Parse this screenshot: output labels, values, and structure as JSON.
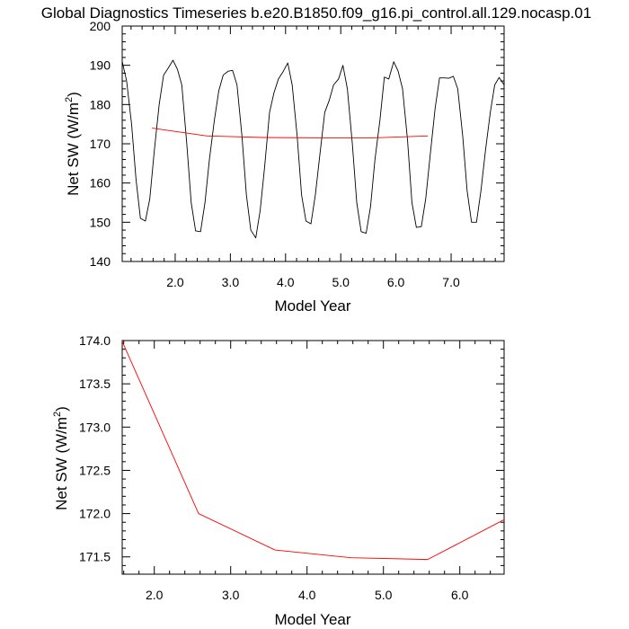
{
  "title": "Global Diagnostics Timeseries b.e20.B1850.f09_g16.pi_control.all.129.nocasp.01",
  "colors": {
    "monthly": "#000000",
    "annual": "#ff0000",
    "frame": "#000000"
  },
  "chart_data": [
    {
      "type": "line",
      "xlabel": "Model Year",
      "ylabel_main": "Net SW (W/m",
      "ylabel_sup": "2",
      "ylabel_close": ")",
      "xlim": [
        1.04,
        7.96
      ],
      "ylim": [
        140,
        200
      ],
      "x_ticks": [
        2,
        3,
        4,
        5,
        6,
        7
      ],
      "x_tick_labels": [
        "2.0",
        "3.0",
        "4.0",
        "5.0",
        "6.0",
        "7.0"
      ],
      "y_ticks": [
        140,
        150,
        160,
        170,
        180,
        190,
        200
      ],
      "y_tick_labels": [
        "140",
        "150",
        "160",
        "170",
        "180",
        "190",
        "200"
      ],
      "series": [
        {
          "color": "#000000",
          "x": [
            1.04,
            1.12,
            1.21,
            1.29,
            1.37,
            1.46,
            1.54,
            1.62,
            1.71,
            1.79,
            1.87,
            1.96,
            2.04,
            2.12,
            2.21,
            2.29,
            2.37,
            2.46,
            2.54,
            2.62,
            2.71,
            2.79,
            2.87,
            2.96,
            3.04,
            3.12,
            3.21,
            3.29,
            3.37,
            3.46,
            3.54,
            3.62,
            3.71,
            3.79,
            3.87,
            3.96,
            4.04,
            4.12,
            4.21,
            4.29,
            4.37,
            4.46,
            4.54,
            4.62,
            4.71,
            4.79,
            4.87,
            4.96,
            5.04,
            5.12,
            5.21,
            5.29,
            5.37,
            5.46,
            5.54,
            5.62,
            5.71,
            5.79,
            5.87,
            5.96,
            6.04,
            6.12,
            6.21,
            6.29,
            6.37,
            6.46,
            6.54,
            6.62,
            6.71,
            6.79,
            6.87,
            6.96,
            7.04,
            7.12,
            7.21,
            7.29,
            7.37,
            7.46,
            7.54,
            7.62,
            7.71,
            7.79,
            7.87,
            7.96
          ],
          "values": [
            191.0,
            186.0,
            175.0,
            161.0,
            151.0,
            150.3,
            156.0,
            168.0,
            180.0,
            187.5,
            189.2,
            191.3,
            189.0,
            185.0,
            170.0,
            155.0,
            147.8,
            147.6,
            155.0,
            166.0,
            176.0,
            183.5,
            187.5,
            188.5,
            188.7,
            185.0,
            172.0,
            157.0,
            148.0,
            146.0,
            153.0,
            164.0,
            178.0,
            183.0,
            186.5,
            188.5,
            190.6,
            185.0,
            172.0,
            157.0,
            150.3,
            149.6,
            157.0,
            167.0,
            178.0,
            181.0,
            185.0,
            186.5,
            190.0,
            184.0,
            170.0,
            155.0,
            147.6,
            147.2,
            154.0,
            166.0,
            176.0,
            187.0,
            186.5,
            190.9,
            188.5,
            184.0,
            171.0,
            155.0,
            148.7,
            148.9,
            156.0,
            167.0,
            179.0,
            186.8,
            186.8,
            186.7,
            187.2,
            184.0,
            172.0,
            158.0,
            150.0,
            150.0,
            158.0,
            168.0,
            178.0,
            185.0,
            186.9,
            185.0
          ]
        },
        {
          "color": "#ff0000",
          "x": [
            1.58,
            2.58,
            3.58,
            4.58,
            5.58,
            6.58
          ],
          "values": [
            174.0,
            172.0,
            171.6,
            171.5,
            171.5,
            172.0
          ]
        }
      ]
    },
    {
      "type": "line",
      "xlabel": "Model Year",
      "ylabel_main": "Net SW (W/m",
      "ylabel_sup": "2",
      "ylabel_close": ")",
      "xlim": [
        1.58,
        6.58
      ],
      "ylim": [
        171.3,
        174.0
      ],
      "x_ticks": [
        2,
        3,
        4,
        5,
        6
      ],
      "x_tick_labels": [
        "2.0",
        "3.0",
        "4.0",
        "5.0",
        "6.0"
      ],
      "y_ticks": [
        171.5,
        172.0,
        172.5,
        173.0,
        173.5,
        174.0
      ],
      "y_tick_labels": [
        "171.5",
        "172.0",
        "172.5",
        "173.0",
        "173.5",
        "174.0"
      ],
      "series": [
        {
          "color": "#ff0000",
          "x": [
            1.58,
            2.58,
            3.58,
            4.58,
            5.58,
            6.58
          ],
          "values": [
            173.99,
            172.0,
            171.58,
            171.49,
            171.47,
            171.93
          ]
        }
      ]
    }
  ]
}
